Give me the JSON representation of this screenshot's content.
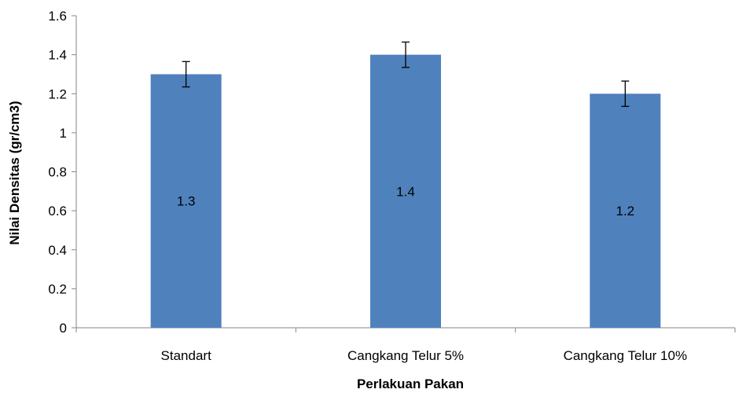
{
  "chart_data": {
    "type": "bar",
    "title": "",
    "xlabel": "Perlakuan Pakan",
    "ylabel": "Nilai Densitas (gr/cm3)",
    "ylim": [
      0,
      1.6
    ],
    "yticks": [
      "0",
      "0.2",
      "0.4",
      "0.6",
      "0.8",
      "1",
      "1.2",
      "1.4",
      "1.6"
    ],
    "categories": [
      "Standart",
      "Cangkang Telur 5%",
      "Cangkang Telur 10%"
    ],
    "values": [
      1.3,
      1.4,
      1.2
    ],
    "data_labels": [
      "1.3",
      "1.4",
      "1.2"
    ],
    "error": [
      0.065,
      0.065,
      0.065
    ],
    "grid": false,
    "legend": "none",
    "bar_color": "#4F81BD"
  }
}
